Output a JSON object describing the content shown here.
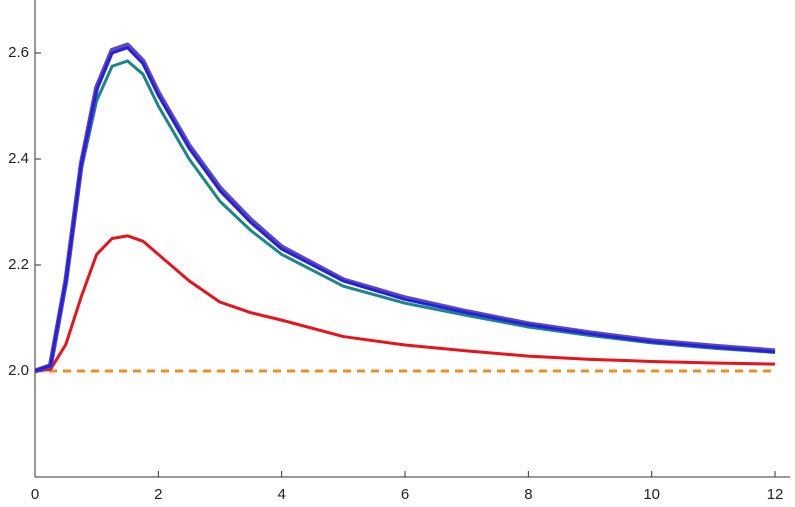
{
  "chart_data": {
    "type": "line",
    "x": [
      0,
      0.25,
      0.5,
      0.75,
      1,
      1.25,
      1.5,
      1.75,
      2,
      2.5,
      3,
      3.5,
      4,
      5,
      6,
      7,
      8,
      9,
      10,
      11,
      12
    ],
    "series": [
      {
        "color": "#f28c1c",
        "dashed": true,
        "values": [
          2,
          2,
          2,
          2,
          2,
          2,
          2,
          2,
          2,
          2,
          2,
          2,
          2,
          2,
          2,
          2,
          2,
          2,
          2,
          2,
          2
        ]
      },
      {
        "color": "#e8141b",
        "values": [
          2.0,
          2.003,
          2.05,
          2.14,
          2.22,
          2.25,
          2.255,
          2.245,
          2.22,
          2.17,
          2.13,
          2.11,
          2.096,
          2.065,
          2.049,
          2.038,
          2.028,
          2.022,
          2.018,
          2.015,
          2.013
        ]
      },
      {
        "color": "#17878a",
        "values": [
          2.0,
          2.01,
          2.165,
          2.38,
          2.51,
          2.575,
          2.585,
          2.56,
          2.5,
          2.4,
          2.32,
          2.265,
          2.22,
          2.16,
          2.128,
          2.105,
          2.083,
          2.067,
          2.053,
          2.043,
          2.035
        ]
      },
      {
        "color": "#5b4bb5",
        "values": [
          2.0,
          2.01,
          2.17,
          2.39,
          2.535,
          2.605,
          2.615,
          2.585,
          2.525,
          2.425,
          2.345,
          2.285,
          2.234,
          2.172,
          2.138,
          2.112,
          2.089,
          2.072,
          2.057,
          2.047,
          2.038
        ]
      },
      {
        "color": "#2a1fe0",
        "values": [
          2.0,
          2.01,
          2.17,
          2.39,
          2.53,
          2.6,
          2.61,
          2.58,
          2.52,
          2.42,
          2.34,
          2.28,
          2.23,
          2.17,
          2.135,
          2.11,
          2.087,
          2.07,
          2.055,
          2.045,
          2.036
        ]
      }
    ],
    "xlim": [
      0,
      12.3
    ],
    "ylim": [
      1.8,
      2.7
    ],
    "xticks": [
      0,
      2,
      4,
      6,
      8,
      10,
      12
    ],
    "yticks": [
      {
        "value": 2,
        "label": "2.0"
      },
      2.2,
      2.4,
      2.6
    ]
  }
}
